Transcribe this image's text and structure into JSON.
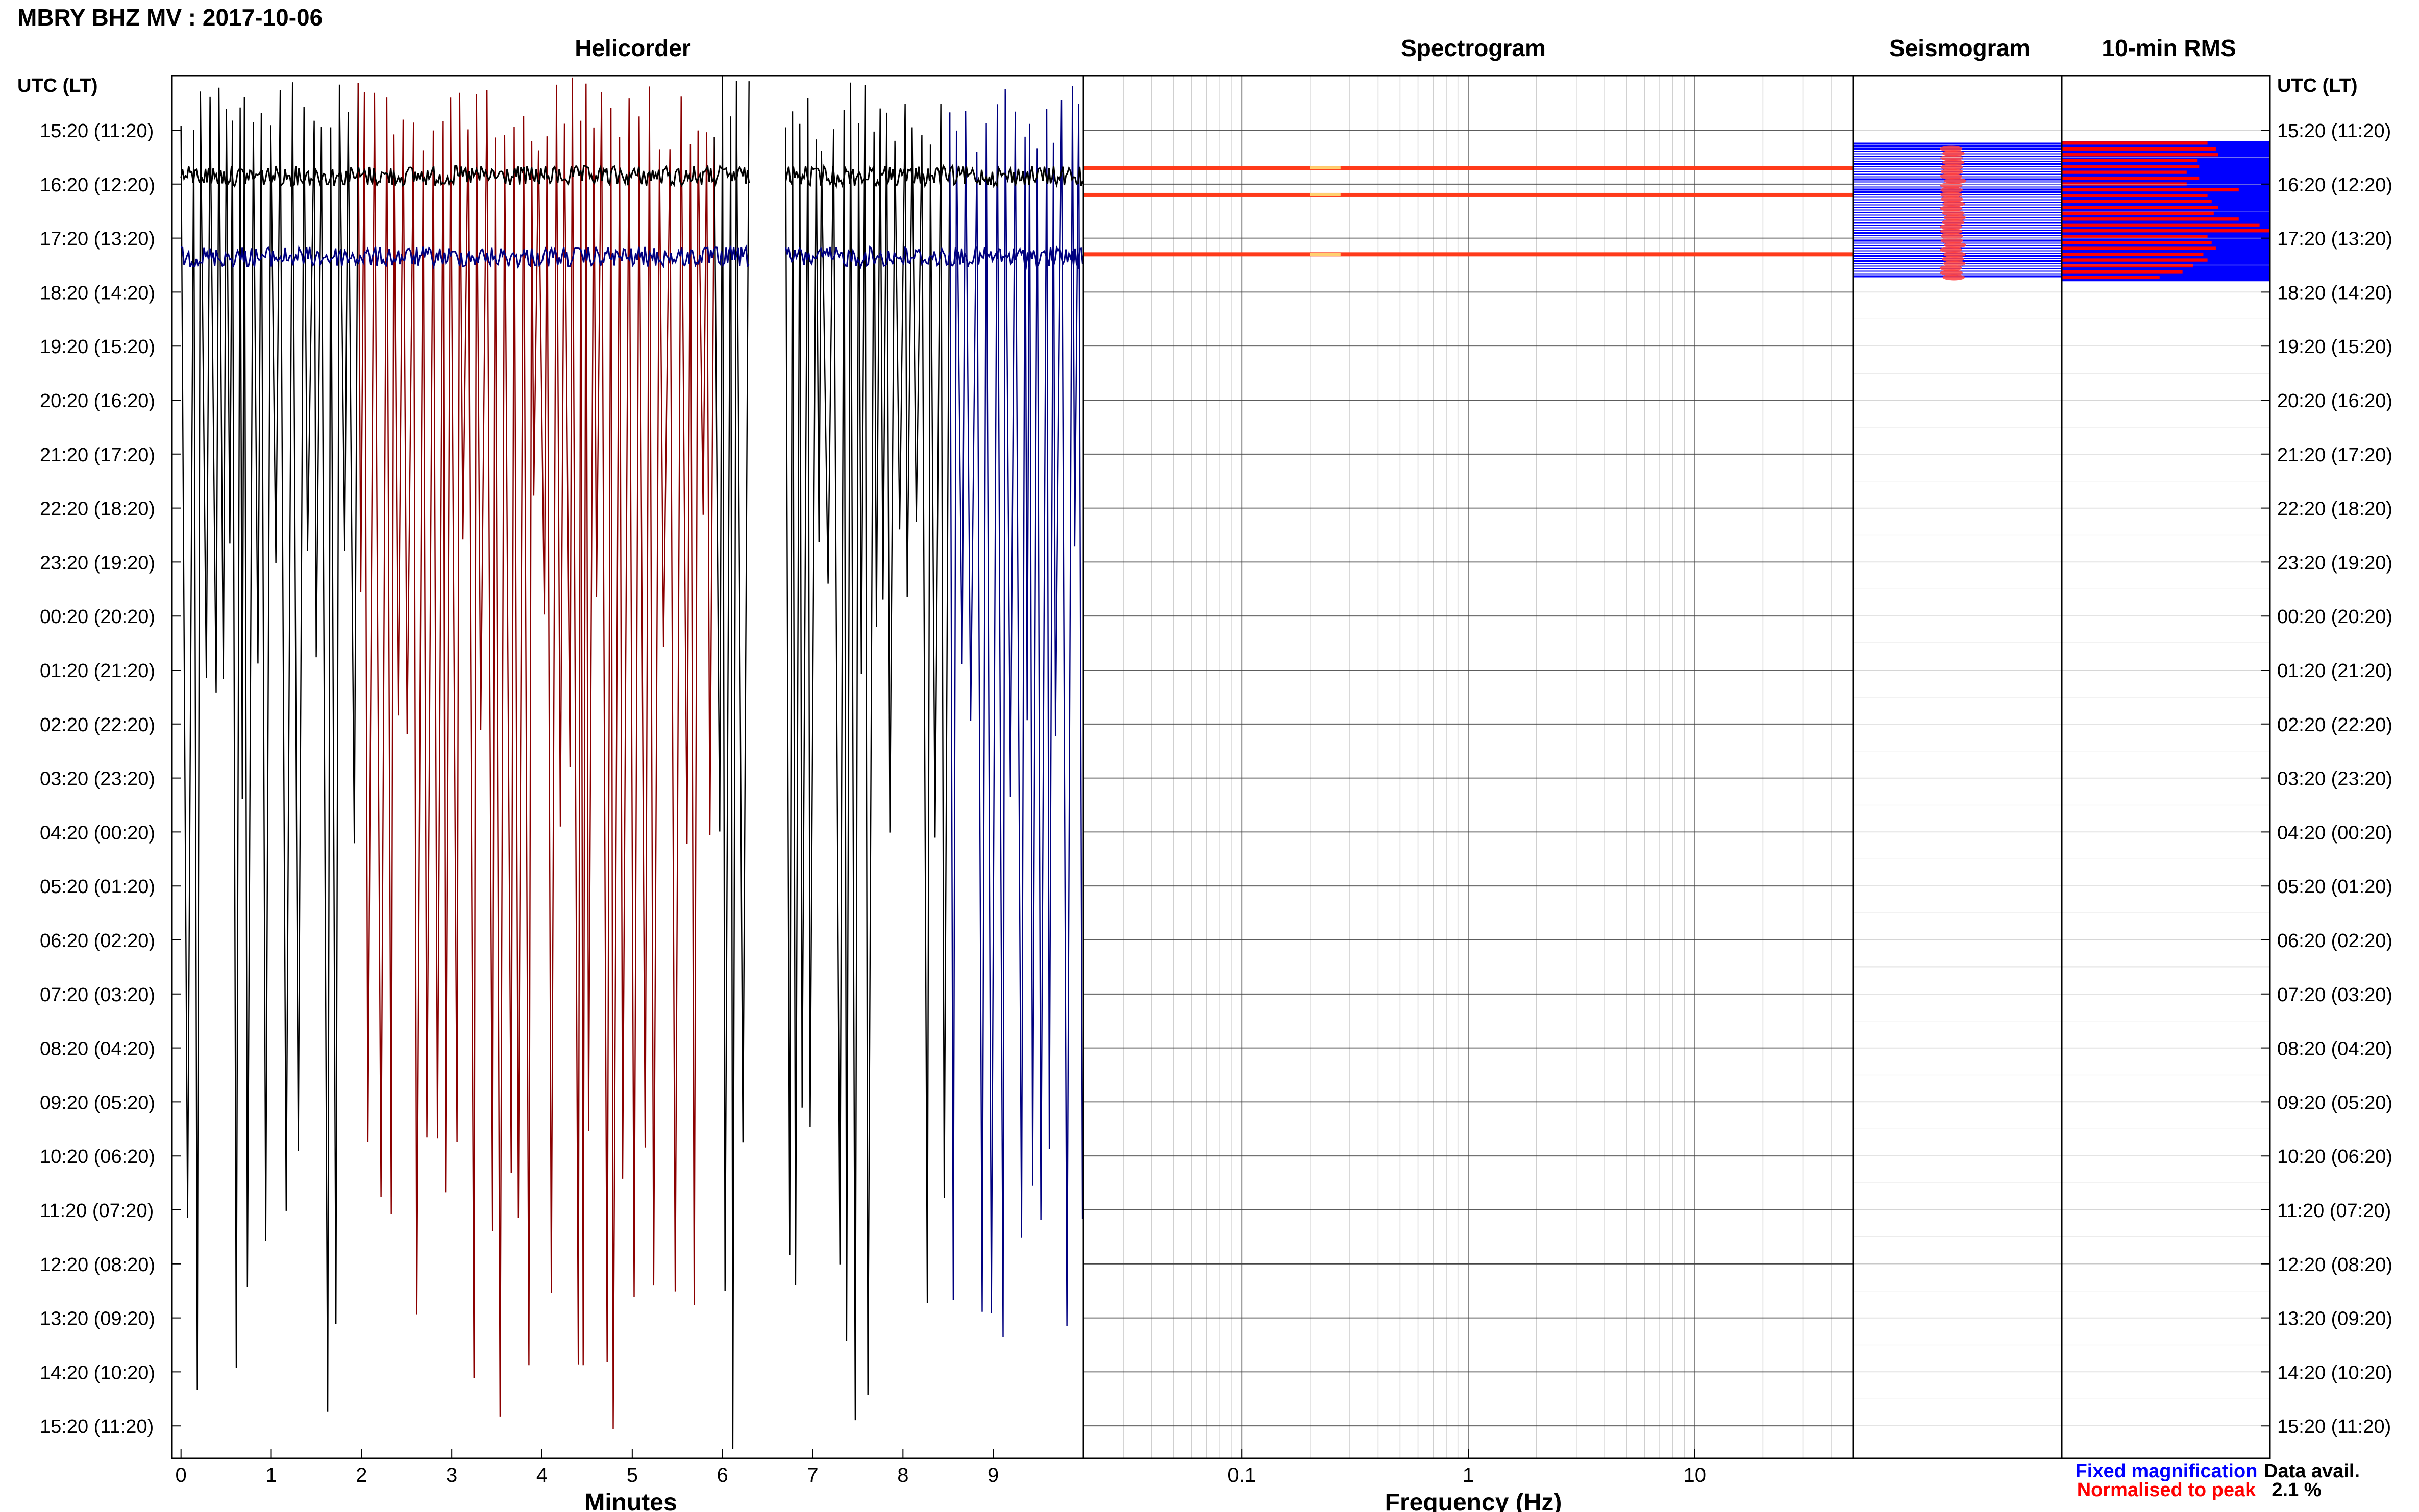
{
  "header": {
    "station_title": "MBRY BHZ MV : 2017-10-06",
    "panel_titles": {
      "helicorder": "Helicorder",
      "spectrogram": "Spectrogram",
      "seismogram": "Seismogram",
      "rms": "10-min RMS"
    },
    "left_axis_title": "UTC (LT)",
    "right_axis_title": "UTC (LT)"
  },
  "chart_data": {
    "type": "line",
    "time_labels": [
      "15:20 (11:20)",
      "16:20 (12:20)",
      "17:20 (13:20)",
      "18:20 (14:20)",
      "19:20 (15:20)",
      "20:20 (16:20)",
      "21:20 (17:20)",
      "22:20 (18:20)",
      "23:20 (19:20)",
      "00:20 (20:20)",
      "01:20 (21:20)",
      "02:20 (22:20)",
      "03:20 (23:20)",
      "04:20 (00:20)",
      "05:20 (01:20)",
      "06:20 (02:20)",
      "07:20 (03:20)",
      "08:20 (04:20)",
      "09:20 (05:20)",
      "10:20 (06:20)",
      "11:20 (07:20)",
      "12:20 (08:20)",
      "13:20 (09:20)",
      "14:20 (10:20)",
      "15:20 (11:20)"
    ],
    "helicorder": {
      "xlabel": "Minutes",
      "xticks": [
        0,
        1,
        2,
        3,
        4,
        5,
        6,
        7,
        8,
        9
      ],
      "xlim": [
        -0.1,
        10.0
      ],
      "trace_colors": [
        "#000080",
        "#000000",
        "#006400",
        "#8b0000"
      ],
      "saturated_minute_ranges": [
        [
          0.0,
          6.3
        ],
        [
          6.7,
          10.0
        ]
      ],
      "data_gap_minutes": [
        6.3,
        6.7
      ]
    },
    "spectrogram": {
      "xlabel": "Frequency (Hz)",
      "xscale": "log",
      "xticks": [
        0.1,
        1,
        10
      ],
      "xlim": [
        0.02,
        50
      ],
      "event_bands_hours_after_start": [
        0.7,
        1.2,
        2.3
      ],
      "band_color": "#ff3a1a"
    },
    "seismogram": {
      "active_hours_after_start": [
        0.25,
        2.75
      ],
      "trace_color": "#0000ff",
      "peak_color": "#ff4040"
    },
    "rms": {
      "series": [
        {
          "name": "Fixed magnification",
          "color": "#0000ff"
        },
        {
          "name": "Normalised to peak",
          "color": "#ff0000"
        }
      ],
      "red_bar_fractions": [
        0.7,
        0.74,
        0.75,
        0.65,
        0.66,
        0.6,
        0.66,
        0.6,
        0.85,
        0.7,
        0.72,
        0.75,
        0.73,
        0.85,
        0.95,
        1.0,
        0.7,
        0.72,
        0.74,
        0.68,
        0.7,
        0.63,
        0.58,
        0.47
      ],
      "active_hours_after_start": [
        0.2,
        2.8
      ]
    },
    "data_availability": {
      "label": "Data avail.",
      "value": "2.1 %"
    }
  }
}
